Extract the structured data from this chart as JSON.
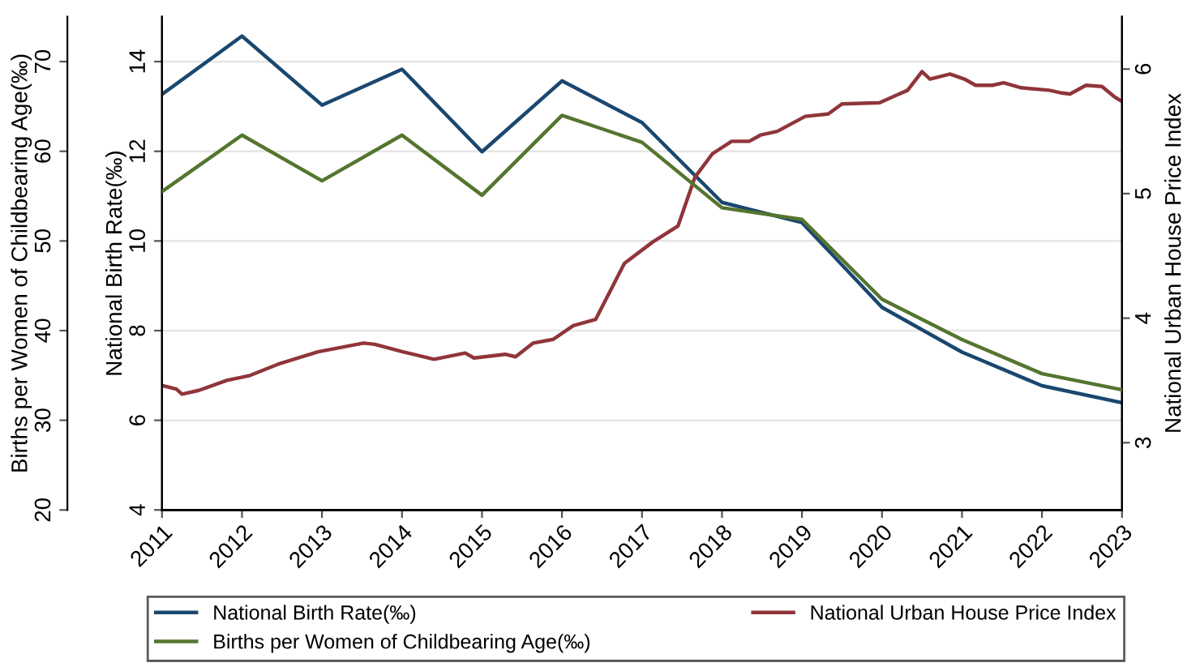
{
  "chart_data": {
    "type": "line",
    "ylabel": "National Birth Rate(‰)",
    "y2label": "National Urban House Price Index",
    "y3label": "Births per Women of Childbearing Age(‰)",
    "xlim": [
      2011,
      2023
    ],
    "xticks": [
      2011,
      2012,
      2013,
      2014,
      2015,
      2016,
      2017,
      2018,
      2019,
      2020,
      2021,
      2022,
      2023
    ],
    "ylim": [
      4,
      15
    ],
    "yticks": [
      4,
      6,
      8,
      10,
      12,
      14
    ],
    "y2lim": [
      2.46,
      6.42
    ],
    "y2ticks": [
      3,
      4,
      5,
      6
    ],
    "y3lim": [
      20,
      75
    ],
    "y3ticks": [
      20,
      30,
      40,
      50,
      60,
      70
    ],
    "grid": "y",
    "legend": "bottom",
    "line_style": "solid",
    "marker": "none",
    "series": [
      {
        "name": "National Birth Rate(‰)",
        "color": "#1a476f",
        "axis": "y",
        "x": [
          2011,
          2012,
          2013,
          2014,
          2015,
          2016,
          2017,
          2018,
          2019,
          2020,
          2021,
          2022,
          2023
        ],
        "values": [
          13.27,
          14.57,
          13.03,
          13.83,
          11.99,
          13.57,
          12.64,
          10.86,
          10.41,
          8.52,
          7.52,
          6.77,
          6.39
        ]
      },
      {
        "name": "National Urban House Price Index",
        "color": "#90353b",
        "axis": "y2",
        "x": [
          2011.0,
          2011.18,
          2011.25,
          2011.46,
          2011.81,
          2012.1,
          2012.45,
          2012.95,
          2013.52,
          2013.66,
          2014.01,
          2014.4,
          2014.79,
          2014.9,
          2015.29,
          2015.42,
          2015.64,
          2015.89,
          2016.14,
          2016.42,
          2016.78,
          2017.13,
          2017.45,
          2017.66,
          2017.88,
          2018.12,
          2018.34,
          2018.48,
          2018.69,
          2019.04,
          2019.33,
          2019.5,
          2019.97,
          2020.18,
          2020.32,
          2020.5,
          2020.6,
          2020.85,
          2021.03,
          2021.17,
          2021.38,
          2021.52,
          2021.74,
          2022.09,
          2022.23,
          2022.35,
          2022.55,
          2022.75,
          2022.9,
          2023.0
        ],
        "values": [
          3.46,
          3.43,
          3.39,
          3.42,
          3.5,
          3.54,
          3.63,
          3.73,
          3.8,
          3.79,
          3.73,
          3.67,
          3.72,
          3.68,
          3.71,
          3.69,
          3.8,
          3.83,
          3.94,
          3.99,
          4.44,
          4.61,
          4.74,
          5.13,
          5.32,
          5.42,
          5.42,
          5.47,
          5.5,
          5.62,
          5.64,
          5.72,
          5.73,
          5.79,
          5.83,
          5.98,
          5.92,
          5.96,
          5.92,
          5.87,
          5.87,
          5.89,
          5.85,
          5.83,
          5.81,
          5.8,
          5.87,
          5.86,
          5.78,
          5.74
        ]
      },
      {
        "name": "Births per Women of Childbearing Age(‰)",
        "color": "#55752f",
        "axis": "y3",
        "x": [
          2011,
          2012,
          2013,
          2014,
          2015,
          2016,
          2017,
          2018,
          2019,
          2020,
          2021,
          2022,
          2023
        ],
        "values": [
          55.5,
          61.8,
          56.7,
          61.8,
          55.1,
          64.0,
          61.0,
          53.7,
          52.4,
          43.5,
          39.0,
          35.2,
          33.4
        ]
      }
    ]
  }
}
